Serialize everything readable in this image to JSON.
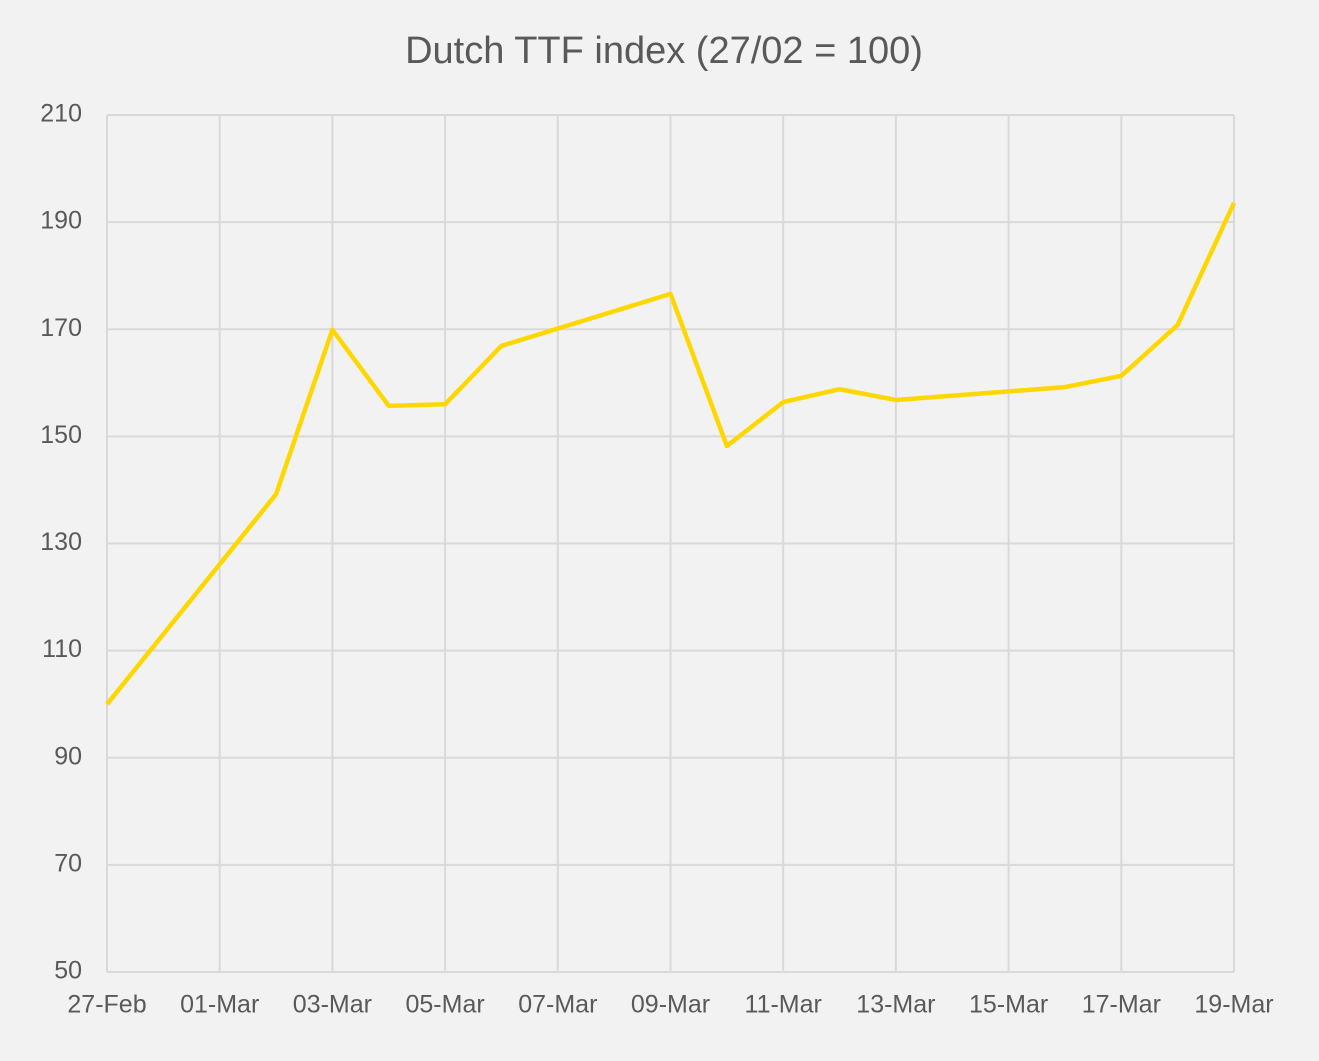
{
  "chart_data": {
    "type": "line",
    "title": "Dutch TTF index (27/02 = 100)",
    "x": [
      "27-Feb",
      "02-Mar",
      "03-Mar",
      "04-Mar",
      "05-Mar",
      "06-Mar",
      "09-Mar",
      "10-Mar",
      "11-Mar",
      "12-Mar",
      "13-Mar",
      "16-Mar",
      "17-Mar",
      "18-Mar",
      "19-Mar"
    ],
    "series": [
      {
        "name": "Dutch TTF index",
        "color": "#ffd700",
        "values": [
          100,
          139.2,
          169.9,
          155.7,
          156.0,
          166.9,
          176.6,
          148.2,
          156.4,
          158.8,
          156.8,
          159.2,
          161.3,
          170.8,
          193.6
        ]
      }
    ],
    "xlim": [
      "27-Feb",
      "19-Mar"
    ],
    "xticks": [
      "27-Feb",
      "01-Mar",
      "03-Mar",
      "05-Mar",
      "07-Mar",
      "09-Mar",
      "11-Mar",
      "13-Mar",
      "15-Mar",
      "17-Mar",
      "19-Mar"
    ],
    "ylim": [
      50,
      210
    ],
    "yticks": [
      50,
      70,
      90,
      110,
      130,
      150,
      170,
      190,
      210
    ],
    "grid": true
  }
}
